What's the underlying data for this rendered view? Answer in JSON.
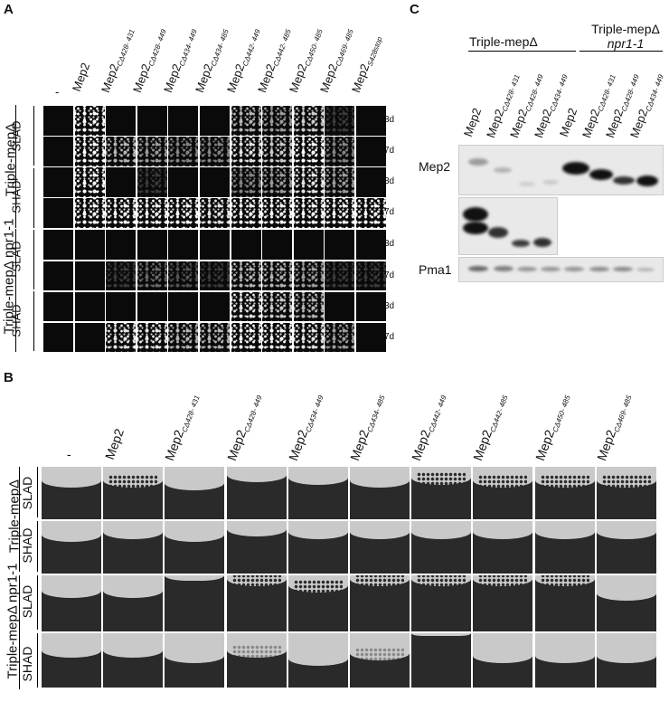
{
  "panelA": {
    "letter": "A",
    "first_col": "-",
    "columns": [
      {
        "base": "Mep2",
        "sub": ""
      },
      {
        "base": "Mep2",
        "sub": "CΔ428- 431"
      },
      {
        "base": "Mep2",
        "sub": "CΔ428- 449"
      },
      {
        "base": "Mep2",
        "sub": "CΔ434- 449"
      },
      {
        "base": "Mep2",
        "sub": "CΔ434- 485"
      },
      {
        "base": "Mep2",
        "sub": "CΔ442- 449"
      },
      {
        "base": "Mep2",
        "sub": "CΔ442- 485"
      },
      {
        "base": "Mep2",
        "sub": "CΔ450- 485"
      },
      {
        "base": "Mep2",
        "sub": "CΔ469- 485"
      },
      {
        "base": "Mep2",
        "sub": "S428stop"
      }
    ],
    "strain1": "Triple-mepΔ",
    "strain2": "Triple-mepΔ npr1-1",
    "medium_slad": "SLAD",
    "medium_shad": "SHAD",
    "t3": "3d",
    "t7": "7d"
  },
  "panelB": {
    "letter": "B",
    "first_col": "-",
    "columns": [
      {
        "base": "Mep2",
        "sub": ""
      },
      {
        "base": "Mep2",
        "sub": "CΔ428- 431"
      },
      {
        "base": "Mep2",
        "sub": "CΔ428- 449"
      },
      {
        "base": "Mep2",
        "sub": "CΔ434- 449"
      },
      {
        "base": "Mep2",
        "sub": "CΔ434- 485"
      },
      {
        "base": "Mep2",
        "sub": "CΔ442- 449"
      },
      {
        "base": "Mep2",
        "sub": "CΔ442- 485"
      },
      {
        "base": "Mep2",
        "sub": "CΔ450- 485"
      },
      {
        "base": "Mep2",
        "sub": "CΔ469- 485"
      }
    ],
    "strain1": "Triple-mepΔ",
    "strain2": "Triple-mepΔ npr1-1",
    "medium_slad": "SLAD",
    "medium_shad": "SHAD"
  },
  "panelC": {
    "letter": "C",
    "group1": "Triple-mepΔ",
    "group2_line1": "Triple-mepΔ",
    "group2_line2": "npr1-1",
    "lanes": [
      {
        "base": "Mep2",
        "sub": ""
      },
      {
        "base": "Mep2",
        "sub": "CΔ428- 431"
      },
      {
        "base": "Mep2",
        "sub": "CΔ428- 449"
      },
      {
        "base": "Mep2",
        "sub": "CΔ434- 449"
      },
      {
        "base": "Mep2",
        "sub": ""
      },
      {
        "base": "Mep2",
        "sub": "CΔ428- 431"
      },
      {
        "base": "Mep2",
        "sub": "CΔ428- 449"
      },
      {
        "base": "Mep2",
        "sub": "CΔ434- 449"
      }
    ],
    "row_mep2": "Mep2",
    "row_pma1": "Pma1"
  }
}
